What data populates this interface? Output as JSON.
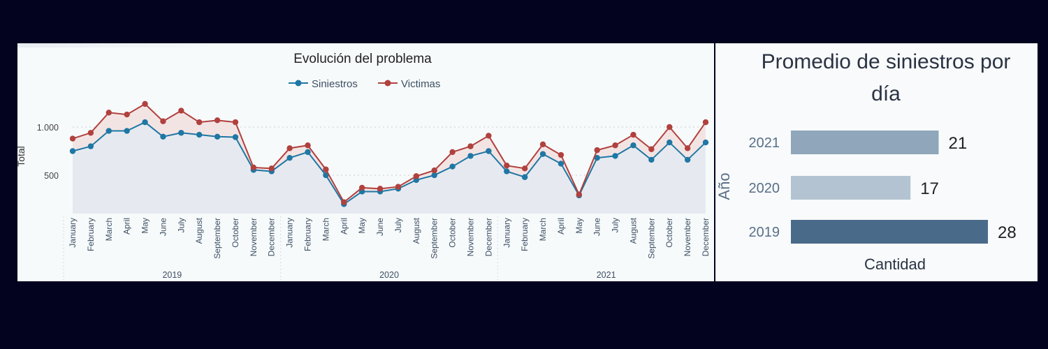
{
  "chart_data": [
    {
      "type": "line",
      "title": "Evolución del problema",
      "ylabel": "Total",
      "xlabel": "",
      "yticks": [
        {
          "value": 500,
          "label": "500"
        },
        {
          "value": 1000,
          "label": "1.000"
        }
      ],
      "ylim": [
        100,
        1200
      ],
      "legend_position": "top-center",
      "grid": true,
      "years": [
        "2019",
        "2020",
        "2021"
      ],
      "categories": [
        "January",
        "February",
        "March",
        "April",
        "May",
        "June",
        "July",
        "August",
        "September",
        "October",
        "November",
        "December",
        "January",
        "February",
        "March",
        "April",
        "May",
        "June",
        "July",
        "August",
        "September",
        "October",
        "November",
        "December",
        "January",
        "February",
        "March",
        "April",
        "May",
        "June",
        "July",
        "August",
        "September",
        "October",
        "November",
        "December"
      ],
      "series": [
        {
          "name": "Siniestros",
          "color": "#1f77a4",
          "values": [
            750,
            800,
            960,
            960,
            1050,
            900,
            940,
            920,
            900,
            895,
            555,
            540,
            680,
            740,
            500,
            200,
            330,
            330,
            360,
            450,
            500,
            590,
            700,
            750,
            540,
            480,
            720,
            620,
            290,
            680,
            700,
            810,
            660,
            840,
            660,
            840
          ]
        },
        {
          "name": "Victimas",
          "color": "#b0413e",
          "values": [
            880,
            940,
            1150,
            1130,
            1240,
            1060,
            1170,
            1050,
            1070,
            1050,
            580,
            570,
            780,
            810,
            560,
            220,
            370,
            360,
            380,
            490,
            550,
            740,
            800,
            910,
            600,
            570,
            820,
            710,
            300,
            760,
            810,
            920,
            770,
            1000,
            780,
            1050
          ]
        }
      ]
    },
    {
      "type": "bar",
      "orientation": "horizontal",
      "title": "Promedio de siniestros por día",
      "xlabel": "Cantidad",
      "ylabel": "Año",
      "categories": [
        "2021",
        "2020",
        "2019"
      ],
      "values": [
        21,
        17,
        28
      ],
      "colors": [
        "#8fa6bb",
        "#b3c3d1",
        "#4a6a8a"
      ]
    }
  ]
}
